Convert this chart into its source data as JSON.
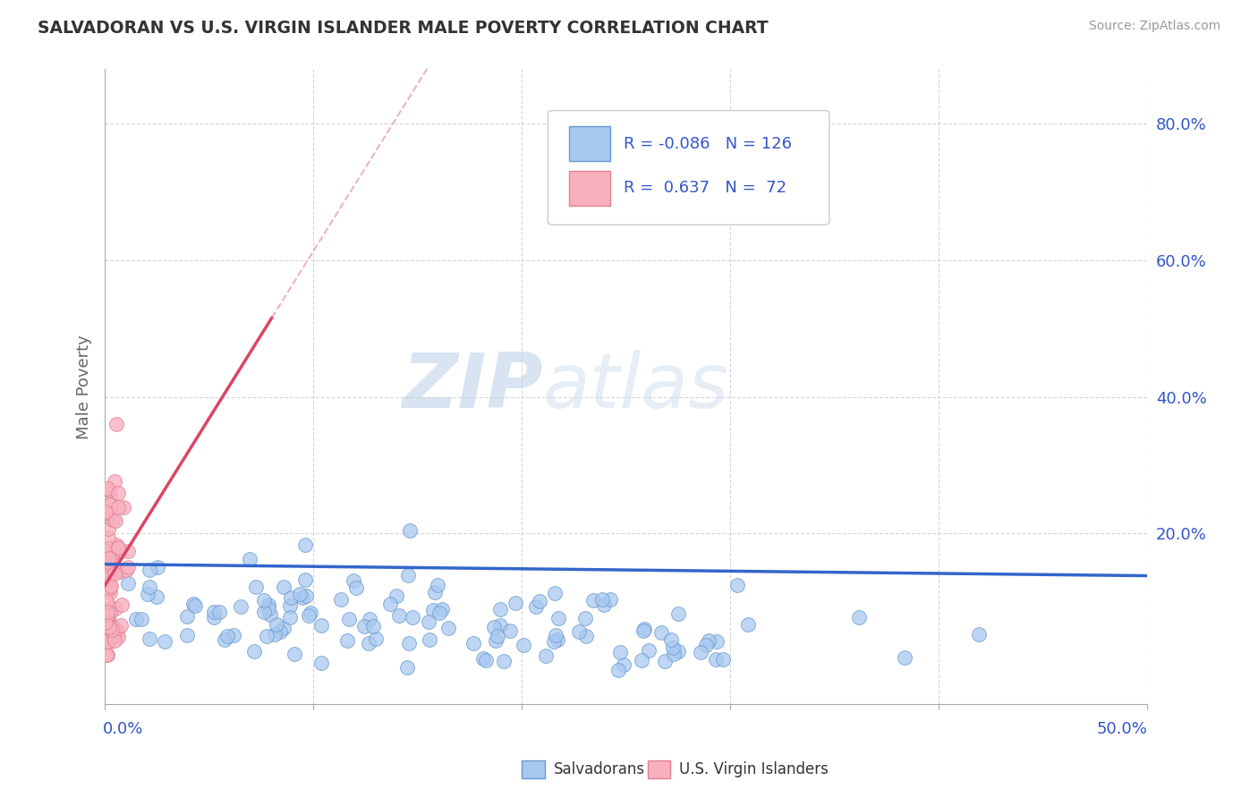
{
  "title": "SALVADORAN VS U.S. VIRGIN ISLANDER MALE POVERTY CORRELATION CHART",
  "source": "Source: ZipAtlas.com",
  "ylabel": "Male Poverty",
  "yaxis_ticks": [
    "80.0%",
    "60.0%",
    "40.0%",
    "20.0%"
  ],
  "yaxis_values": [
    0.8,
    0.6,
    0.4,
    0.2
  ],
  "xlim": [
    0.0,
    0.5
  ],
  "ylim": [
    -0.05,
    0.88
  ],
  "blue_color": "#a8c8f0",
  "blue_edge": "#6699cc",
  "pink_color": "#f8b0c0",
  "pink_edge": "#e08090",
  "blue_line_color": "#3366cc",
  "pink_line_color": "#dd4466",
  "pink_dash_color": "#e8a0b0",
  "R_blue": -0.086,
  "N_blue": 126,
  "R_pink": 0.637,
  "N_pink": 72,
  "legend_blue_label": "Salvadorans",
  "legend_pink_label": "U.S. Virgin Islanders",
  "watermark_zip": "ZIP",
  "watermark_atlas": "atlas",
  "background_color": "#ffffff",
  "grid_color": "#cccccc",
  "title_color": "#333333",
  "legend_R_color": "#3355cc",
  "seed_blue": 7,
  "seed_pink": 13
}
